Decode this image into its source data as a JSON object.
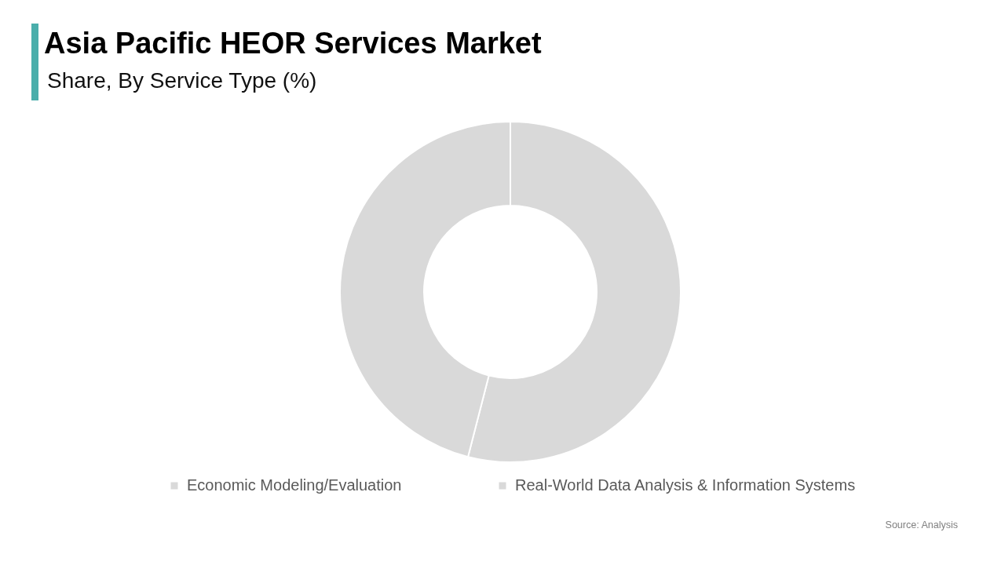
{
  "chart_data": {
    "type": "donut",
    "title": "Asia Pacific HEOR Services Market",
    "subtitle": "Share, By Service Type (%)",
    "categories": [
      "Economic Modeling/Evaluation",
      "Real-World Data Analysis & Information Systems"
    ],
    "values": [
      54,
      46
    ],
    "colors": [
      "#d9d9d9",
      "#d9d9d9"
    ],
    "legend": "bottom",
    "annotations": [
      "Source: Analysis"
    ]
  }
}
